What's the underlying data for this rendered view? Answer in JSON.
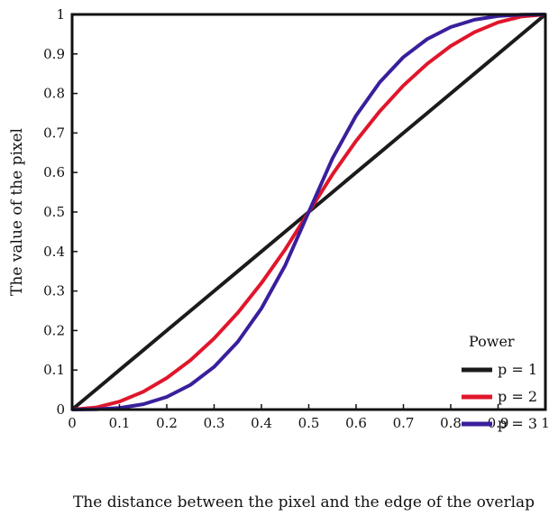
{
  "chart_data": {
    "type": "line",
    "title": "",
    "xlabel": "The distance between the pixel and the edge of the overlap",
    "ylabel": "The value of the pixel",
    "xlim": [
      0,
      1
    ],
    "ylim": [
      0,
      1
    ],
    "xticks": [
      "0",
      "0.1",
      "0.2",
      "0.3",
      "0.4",
      "0.5",
      "0.6",
      "0.7",
      "0.8",
      "0.9",
      "1"
    ],
    "yticks": [
      "0",
      "0.1",
      "0.2",
      "0.3",
      "0.4",
      "0.5",
      "0.6",
      "0.7",
      "0.8",
      "0.9",
      "1"
    ],
    "grid": false,
    "legend": {
      "title": "Power",
      "placement": "bottom-right"
    },
    "x": [
      0,
      0.05,
      0.1,
      0.15,
      0.2,
      0.25,
      0.3,
      0.35,
      0.4,
      0.45,
      0.5,
      0.55,
      0.6,
      0.65,
      0.7,
      0.75,
      0.8,
      0.85,
      0.9,
      0.95,
      1
    ],
    "series": [
      {
        "name": "p = 1",
        "color": "#1b1b1b",
        "values": [
          0,
          0.05,
          0.1,
          0.15,
          0.2,
          0.25,
          0.3,
          0.35,
          0.4,
          0.45,
          0.5,
          0.55,
          0.6,
          0.65,
          0.7,
          0.75,
          0.8,
          0.85,
          0.9,
          0.95,
          1
        ]
      },
      {
        "name": "p = 2",
        "color": "#e0162b",
        "values": [
          0,
          0.005,
          0.02,
          0.045,
          0.08,
          0.125,
          0.18,
          0.245,
          0.32,
          0.405,
          0.5,
          0.595,
          0.68,
          0.755,
          0.82,
          0.875,
          0.92,
          0.955,
          0.98,
          0.995,
          1
        ]
      },
      {
        "name": "p = 3",
        "color": "#3a1f9c",
        "values": [
          0,
          0.0005,
          0.004,
          0.0135,
          0.032,
          0.0625,
          0.108,
          0.1715,
          0.256,
          0.3645,
          0.5,
          0.6355,
          0.744,
          0.8285,
          0.892,
          0.9375,
          0.968,
          0.9865,
          0.996,
          0.9995,
          1
        ]
      }
    ]
  }
}
